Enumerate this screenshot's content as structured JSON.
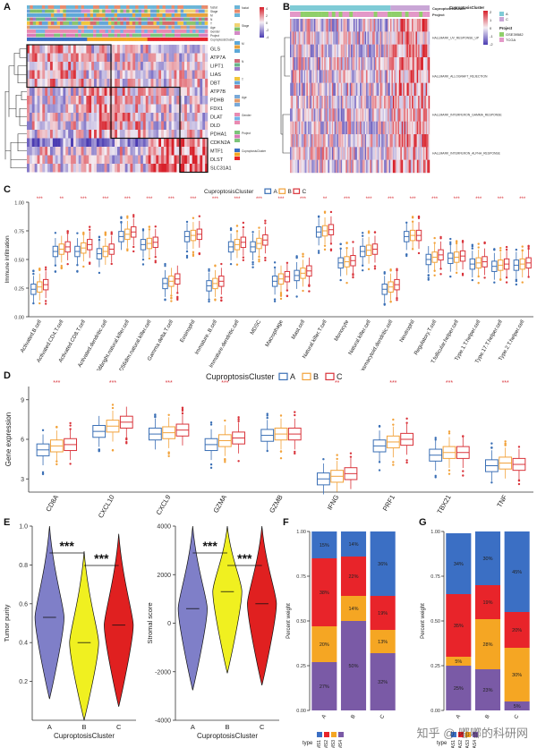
{
  "panels": {
    "A": "A",
    "B": "B",
    "C": "C",
    "D": "D",
    "E": "E",
    "F": "F",
    "G": "G"
  },
  "panelA": {
    "annotation_rows": [
      "fustat",
      "Stage",
      "M",
      "N",
      "T",
      "Age",
      "Gender",
      "Project",
      "CuproptosisCluster"
    ],
    "genes": [
      "GLS",
      "ATP7A",
      "LIPT1",
      "LIAS",
      "DBT",
      "ATP7B",
      "PDHB",
      "FDX1",
      "DLAT",
      "DLD",
      "PDHA1",
      "CDKN2A",
      "MTF1",
      "DLST",
      "SLC31A1"
    ],
    "legend_titles": [
      "fustat",
      "Stage",
      "M",
      "N",
      "T",
      "Age",
      "Gender",
      "Project",
      "CuproptosisCluster"
    ],
    "legend_ticks": [
      "4",
      "2",
      "0",
      "-2",
      "-4"
    ]
  },
  "panelB": {
    "annotation_rows": [
      "CuproptosisCluster",
      "Project"
    ],
    "pathways": [
      "HALLMARK_UV_RESPONSE_UP",
      "HALLMARK_ALLOGRAFT_REJECTION",
      "HALLMARK_INTERFERON_GAMMA_RESPONSE",
      "HALLMARK_INTERFERON_ALPHA_RESPONSE"
    ],
    "legend": {
      "cluster_title": "CuproptosisCluster",
      "cluster_items": [
        "A",
        "C"
      ],
      "project_title": "Project",
      "project_items": [
        "GSE39582",
        "TCGA"
      ],
      "scale_ticks": [
        "2",
        "1",
        "0",
        "-1",
        "-2"
      ]
    }
  },
  "chart_data": [
    {
      "id": "C",
      "type": "boxplot",
      "legend_title": "CuproptosisCluster",
      "series": [
        {
          "name": "A",
          "color": "#3a6fb5"
        },
        {
          "name": "B",
          "color": "#f2a23a"
        },
        {
          "name": "C",
          "color": "#d9333a"
        }
      ],
      "ylabel": "Immune infiltration",
      "ylim": [
        0,
        1.0
      ],
      "yticks": [
        "0.00",
        "0.25",
        "0.50",
        "0.75",
        "1.00"
      ],
      "categories": [
        "Activated.B.cell",
        "Activated.CD4.T.cell",
        "Activated.CD8.T.cell",
        "Activated.dendritic.cell",
        "CD56bright.natural.killer.cell",
        "CD56dim.natural.killer.cell",
        "Gamma.delta.T.cell",
        "Eosinophil",
        "Immature..B.cell",
        "Immature.dendritic.cell",
        "MDSC",
        "Macrophage",
        "Mast.cell",
        "Natural.killer.T.cell",
        "Monocyte",
        "Natural.killer.cell",
        "Plasmacytoid.dendritic.cell",
        "Neutrophil",
        "Regulatory.T.cell",
        "T.follicular.helper.cell",
        "Type.1.T.helper.cell",
        "Type.17.T.helper.cell",
        "Type.2.T.helper.cell"
      ],
      "medians": [
        [
          0.24,
          0.26,
          0.28
        ],
        [
          0.57,
          0.59,
          0.61
        ],
        [
          0.57,
          0.6,
          0.63
        ],
        [
          0.55,
          0.57,
          0.59
        ],
        [
          0.7,
          0.72,
          0.74
        ],
        [
          0.63,
          0.64,
          0.65
        ],
        [
          0.29,
          0.31,
          0.33
        ],
        [
          0.7,
          0.71,
          0.72
        ],
        [
          0.27,
          0.29,
          0.31
        ],
        [
          0.61,
          0.63,
          0.65
        ],
        [
          0.61,
          0.64,
          0.67
        ],
        [
          0.31,
          0.33,
          0.35
        ],
        [
          0.36,
          0.38,
          0.4
        ],
        [
          0.74,
          0.75,
          0.76
        ],
        [
          0.47,
          0.48,
          0.49
        ],
        [
          0.57,
          0.58,
          0.59
        ],
        [
          0.24,
          0.26,
          0.28
        ],
        [
          0.7,
          0.71,
          0.71
        ],
        [
          0.5,
          0.52,
          0.54
        ],
        [
          0.51,
          0.52,
          0.53
        ],
        [
          0.46,
          0.47,
          0.48
        ],
        [
          0.44,
          0.45,
          0.46
        ],
        [
          0.45,
          0.46,
          0.47
        ]
      ],
      "sig_top": [
        "***",
        "**",
        "***",
        "***",
        "***",
        "***",
        "***",
        "***",
        "***",
        "***",
        "***",
        "***",
        "***",
        "**",
        "***",
        "***",
        "***",
        "***",
        "***",
        "***",
        "***",
        "***",
        "***"
      ]
    },
    {
      "id": "D",
      "type": "boxplot",
      "legend_title": "CuproptosisCluster",
      "series": [
        {
          "name": "A",
          "color": "#3a6fb5"
        },
        {
          "name": "B",
          "color": "#f2a23a"
        },
        {
          "name": "C",
          "color": "#d9333a"
        }
      ],
      "ylabel": "Gene expression",
      "ylim": [
        2,
        10
      ],
      "yticks": [
        "3",
        "6",
        "9"
      ],
      "categories": [
        "CD8A",
        "CXCL10",
        "CXCL9",
        "GZMA",
        "GZMB",
        "IFNG",
        "PRF1",
        "TBX21",
        "TNF"
      ],
      "medians": [
        [
          5.2,
          5.5,
          5.6
        ],
        [
          6.6,
          7.0,
          7.3
        ],
        [
          6.4,
          6.5,
          6.7
        ],
        [
          5.6,
          5.9,
          6.1
        ],
        [
          6.3,
          6.4,
          6.4
        ],
        [
          3.0,
          3.2,
          3.4
        ],
        [
          5.5,
          5.8,
          6.0
        ],
        [
          4.8,
          5.0,
          5.0
        ],
        [
          4.0,
          4.2,
          4.1
        ]
      ],
      "sig_top": [
        "***",
        "***",
        "***",
        "***",
        "",
        "**",
        "***",
        "***",
        "***"
      ]
    },
    {
      "id": "E-left",
      "type": "violin",
      "categories": [
        "A",
        "B",
        "C"
      ],
      "medians": [
        0.53,
        0.4,
        0.49
      ],
      "ylabel": "Tumor purity",
      "xlabel": "CuproptosisCluster",
      "ylim": [
        0.0,
        1.0
      ],
      "yticks": [
        "0.2",
        "0.4",
        "0.6",
        "0.8",
        "1.0"
      ],
      "annotations": [
        "***",
        "***"
      ],
      "colors": [
        "#7f7fc8",
        "#f0f020",
        "#e02020"
      ]
    },
    {
      "id": "E-right",
      "type": "violin",
      "categories": [
        "A",
        "B",
        "C"
      ],
      "medians": [
        600,
        1300,
        800
      ],
      "ylabel": "Stromal score",
      "xlabel": "CuproptosisCluster",
      "ylim": [
        -4000,
        4000
      ],
      "yticks": [
        "-4000",
        "-2000",
        "0",
        "2000",
        "4000"
      ],
      "annotations": [
        "***",
        "***"
      ],
      "colors": [
        "#7f7fc8",
        "#f0f020",
        "#e02020"
      ]
    },
    {
      "id": "F",
      "type": "stacked-bar",
      "categories": [
        "A",
        "B",
        "C"
      ],
      "ylabel": "Percent weight",
      "yticks": [
        "0.00",
        "0.25",
        "0.50",
        "0.75",
        "1.00"
      ],
      "legend_title": "type",
      "series": [
        {
          "name": "CMS1",
          "color": "#3b6fc4",
          "values": [
            15,
            14,
            36
          ]
        },
        {
          "name": "CMS2",
          "color": "#e8242a",
          "values": [
            38,
            22,
            19
          ]
        },
        {
          "name": "CMS3",
          "color": "#f5a623",
          "values": [
            20,
            14,
            13
          ]
        },
        {
          "name": "CMS4",
          "color": "#7a5aa6",
          "values": [
            27,
            50,
            32
          ]
        }
      ],
      "labels": [
        [
          "15%",
          "38%",
          "20%",
          "27%"
        ],
        [
          "14%",
          "22%",
          "14%",
          "50%"
        ],
        [
          "36%",
          "19%",
          "13%",
          "32%"
        ]
      ]
    },
    {
      "id": "G",
      "type": "stacked-bar",
      "categories": [
        "A",
        "B",
        "C"
      ],
      "ylabel": "Percent weight",
      "yticks": [
        "0.00",
        "0.25",
        "0.50",
        "0.75",
        "1.00"
      ],
      "legend_title": "type",
      "series": [
        {
          "name": "KRAS1",
          "color": "#3b6fc4",
          "values": [
            34,
            30,
            45
          ]
        },
        {
          "name": "KRAS2",
          "color": "#e8242a",
          "values": [
            35,
            19,
            20
          ]
        },
        {
          "name": "KRAS3",
          "color": "#f5a623",
          "values": [
            5,
            28,
            30
          ]
        },
        {
          "name": "KRAS4",
          "color": "#7a5aa6",
          "values": [
            25,
            23,
            5
          ]
        }
      ],
      "labels": [
        [
          "34%",
          "35%",
          "5%",
          "25%"
        ],
        [
          "30%",
          "19%",
          "28%",
          "23%"
        ],
        [
          "45%",
          "20%",
          "30%",
          "5%"
        ]
      ]
    }
  ],
  "watermark": "知乎 @ 嘟嘟的科研网"
}
